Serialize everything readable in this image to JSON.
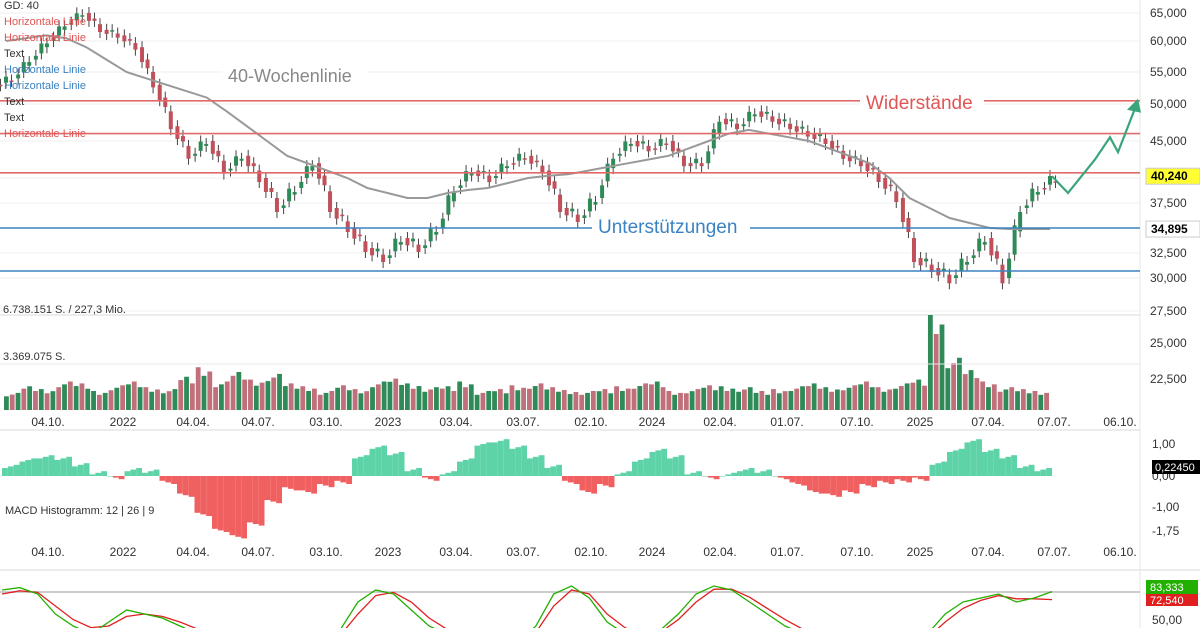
{
  "chart_data": {
    "type": "candlestick",
    "price_panel": {
      "y_ticks": [
        "65,000",
        "60,000",
        "55,000",
        "50,000",
        "45,000",
        "40,000",
        "37,500",
        "35,000",
        "32,500",
        "30,000",
        "27,500"
      ],
      "corner_labels": [
        {
          "text": "GD: 40",
          "color": "#333333"
        },
        {
          "text": "Horizontale Linie",
          "color": "#e05555"
        },
        {
          "text": "Horizontale Linie",
          "color": "#e05555"
        },
        {
          "text": "Text",
          "color": "#333333"
        },
        {
          "text": "Horizontale Linie",
          "color": "#3b82c4"
        },
        {
          "text": "Horizontale Linie",
          "color": "#3b82c4"
        },
        {
          "text": "Text",
          "color": "#333333"
        },
        {
          "text": "Text",
          "color": "#333333"
        },
        {
          "text": "Horizontale Linie",
          "color": "#e05555"
        }
      ],
      "resistance_lines": [
        50500,
        46000,
        40700
      ],
      "support_lines": [
        35000,
        30700
      ],
      "annotations": {
        "moving_average": "40-Wochenlinie",
        "resistance": "Widerstände",
        "support": "Unterstützungen"
      },
      "price_badges": [
        {
          "text": "40,240",
          "value": 40240,
          "bg": "#ffff33",
          "color": "#000000"
        },
        {
          "text": "34,895",
          "value": 34895,
          "bg": "#ffffff",
          "color": "#000000"
        }
      ],
      "close_series": [
        54,
        57,
        60,
        63,
        65,
        62,
        61,
        59,
        53,
        47,
        43,
        45,
        41,
        43,
        40,
        37,
        39,
        42,
        37,
        35,
        33,
        32,
        34,
        33,
        35,
        39,
        41,
        40,
        42,
        43,
        41,
        37,
        36,
        38,
        43,
        45,
        44,
        45,
        42,
        42,
        48,
        47,
        49,
        48,
        47,
        46,
        45,
        43,
        42,
        40,
        38,
        32,
        31,
        30,
        32,
        34,
        30,
        37,
        39,
        40
      ],
      "ma_series": [
        60,
        60.5,
        61,
        60.5,
        59,
        57,
        55,
        54,
        53,
        52,
        51,
        49,
        47,
        45,
        43,
        42,
        41,
        40,
        39,
        38.5,
        38,
        38,
        38.5,
        38.8,
        39,
        39.5,
        40,
        40.3,
        40.5,
        41,
        41.5,
        42,
        42.5,
        43,
        44,
        45,
        46,
        46.5,
        46,
        45.5,
        45,
        44,
        43,
        42,
        40,
        38,
        37,
        36,
        35.5,
        35,
        34.9,
        34.9,
        34.9
      ],
      "projection": [
        40240,
        38500,
        42500,
        45500,
        43500,
        50500
      ]
    },
    "volume_panel": {
      "labels": [
        "6.738.151 S. / 227,3 Mio.",
        "3.369.075 S."
      ],
      "y_ticks": [
        "25,000",
        "22,500"
      ],
      "values": [
        0.18,
        0.25,
        0.22,
        0.3,
        0.28,
        0.2,
        0.26,
        0.3,
        0.24,
        0.22,
        0.35,
        0.45,
        0.3,
        0.4,
        0.32,
        0.38,
        0.28,
        0.25,
        0.2,
        0.26,
        0.22,
        0.3,
        0.33,
        0.28,
        0.24,
        0.25,
        0.3,
        0.2,
        0.22,
        0.26,
        0.28,
        0.24,
        0.21,
        0.2,
        0.22,
        0.25,
        0.28,
        0.3,
        0.2,
        0.22,
        0.26,
        0.25,
        0.24,
        0.2,
        0.22,
        0.25,
        0.28,
        0.24,
        0.26,
        0.3,
        0.24,
        0.28,
        0.32,
        1.0,
        0.55,
        0.42,
        0.3,
        0.24,
        0.22,
        0.2
      ]
    },
    "x_axis": [
      "04.10.",
      "2022",
      "04.04.",
      "04.07.",
      "03.10.",
      "2023",
      "03.04.",
      "03.07.",
      "02.10.",
      "2024",
      "02.04.",
      "01.07.",
      "07.10.",
      "2025",
      "07.04.",
      "07.07.",
      "06.10."
    ],
    "macd_panel": {
      "label": "MACD Histogramm: 12 | 26 | 9",
      "y_ticks": [
        "1,00",
        "0,00",
        "-1,00",
        "-1,75"
      ],
      "badge": "0,22450",
      "values": [
        0.3,
        0.5,
        0.6,
        0.55,
        0.35,
        0.1,
        -0.05,
        0.2,
        0.15,
        -0.2,
        -0.6,
        -1.2,
        -1.7,
        -1.9,
        -1.5,
        -0.8,
        -0.4,
        -0.5,
        -0.3,
        -0.2,
        0.6,
        0.9,
        0.7,
        0.2,
        -0.1,
        0.1,
        0.5,
        1.0,
        1.1,
        0.9,
        0.6,
        0.3,
        -0.2,
        -0.5,
        -0.3,
        0.1,
        0.5,
        0.8,
        0.6,
        0.1,
        -0.05,
        0.05,
        0.2,
        0.15,
        -0.05,
        -0.25,
        -0.5,
        -0.6,
        -0.5,
        -0.3,
        -0.2,
        -0.15,
        -0.1,
        0.4,
        0.8,
        1.1,
        0.8,
        0.6,
        0.3,
        0.2
      ]
    },
    "stoch_panel": {
      "y_ticks": [
        "50,00"
      ],
      "badges": [
        {
          "text": "83,333",
          "bg": "#22b000",
          "color": "#ffffff"
        },
        {
          "text": "72,540",
          "bg": "#e02020",
          "color": "#ffffff"
        }
      ],
      "k_series": [
        85,
        88,
        80,
        55,
        40,
        30,
        45,
        60,
        55,
        50,
        40,
        30,
        20,
        25,
        30,
        20,
        15,
        10,
        20,
        35,
        70,
        85,
        80,
        60,
        40,
        30,
        20,
        15,
        10,
        20,
        40,
        80,
        90,
        75,
        45,
        30,
        25,
        35,
        55,
        80,
        90,
        85,
        70,
        55,
        40,
        30,
        20,
        15,
        25,
        30,
        20,
        15,
        30,
        55,
        70,
        75,
        80,
        70,
        75,
        83
      ],
      "d_series": [
        80,
        84,
        82,
        65,
        48,
        38,
        40,
        52,
        55,
        52,
        45,
        36,
        25,
        24,
        28,
        24,
        18,
        14,
        17,
        28,
        55,
        78,
        82,
        70,
        50,
        36,
        25,
        18,
        13,
        16,
        32,
        65,
        85,
        80,
        55,
        38,
        28,
        32,
        48,
        70,
        86,
        86,
        76,
        62,
        48,
        36,
        25,
        18,
        22,
        28,
        24,
        18,
        25,
        45,
        62,
        72,
        78,
        74,
        74,
        73
      ]
    }
  }
}
